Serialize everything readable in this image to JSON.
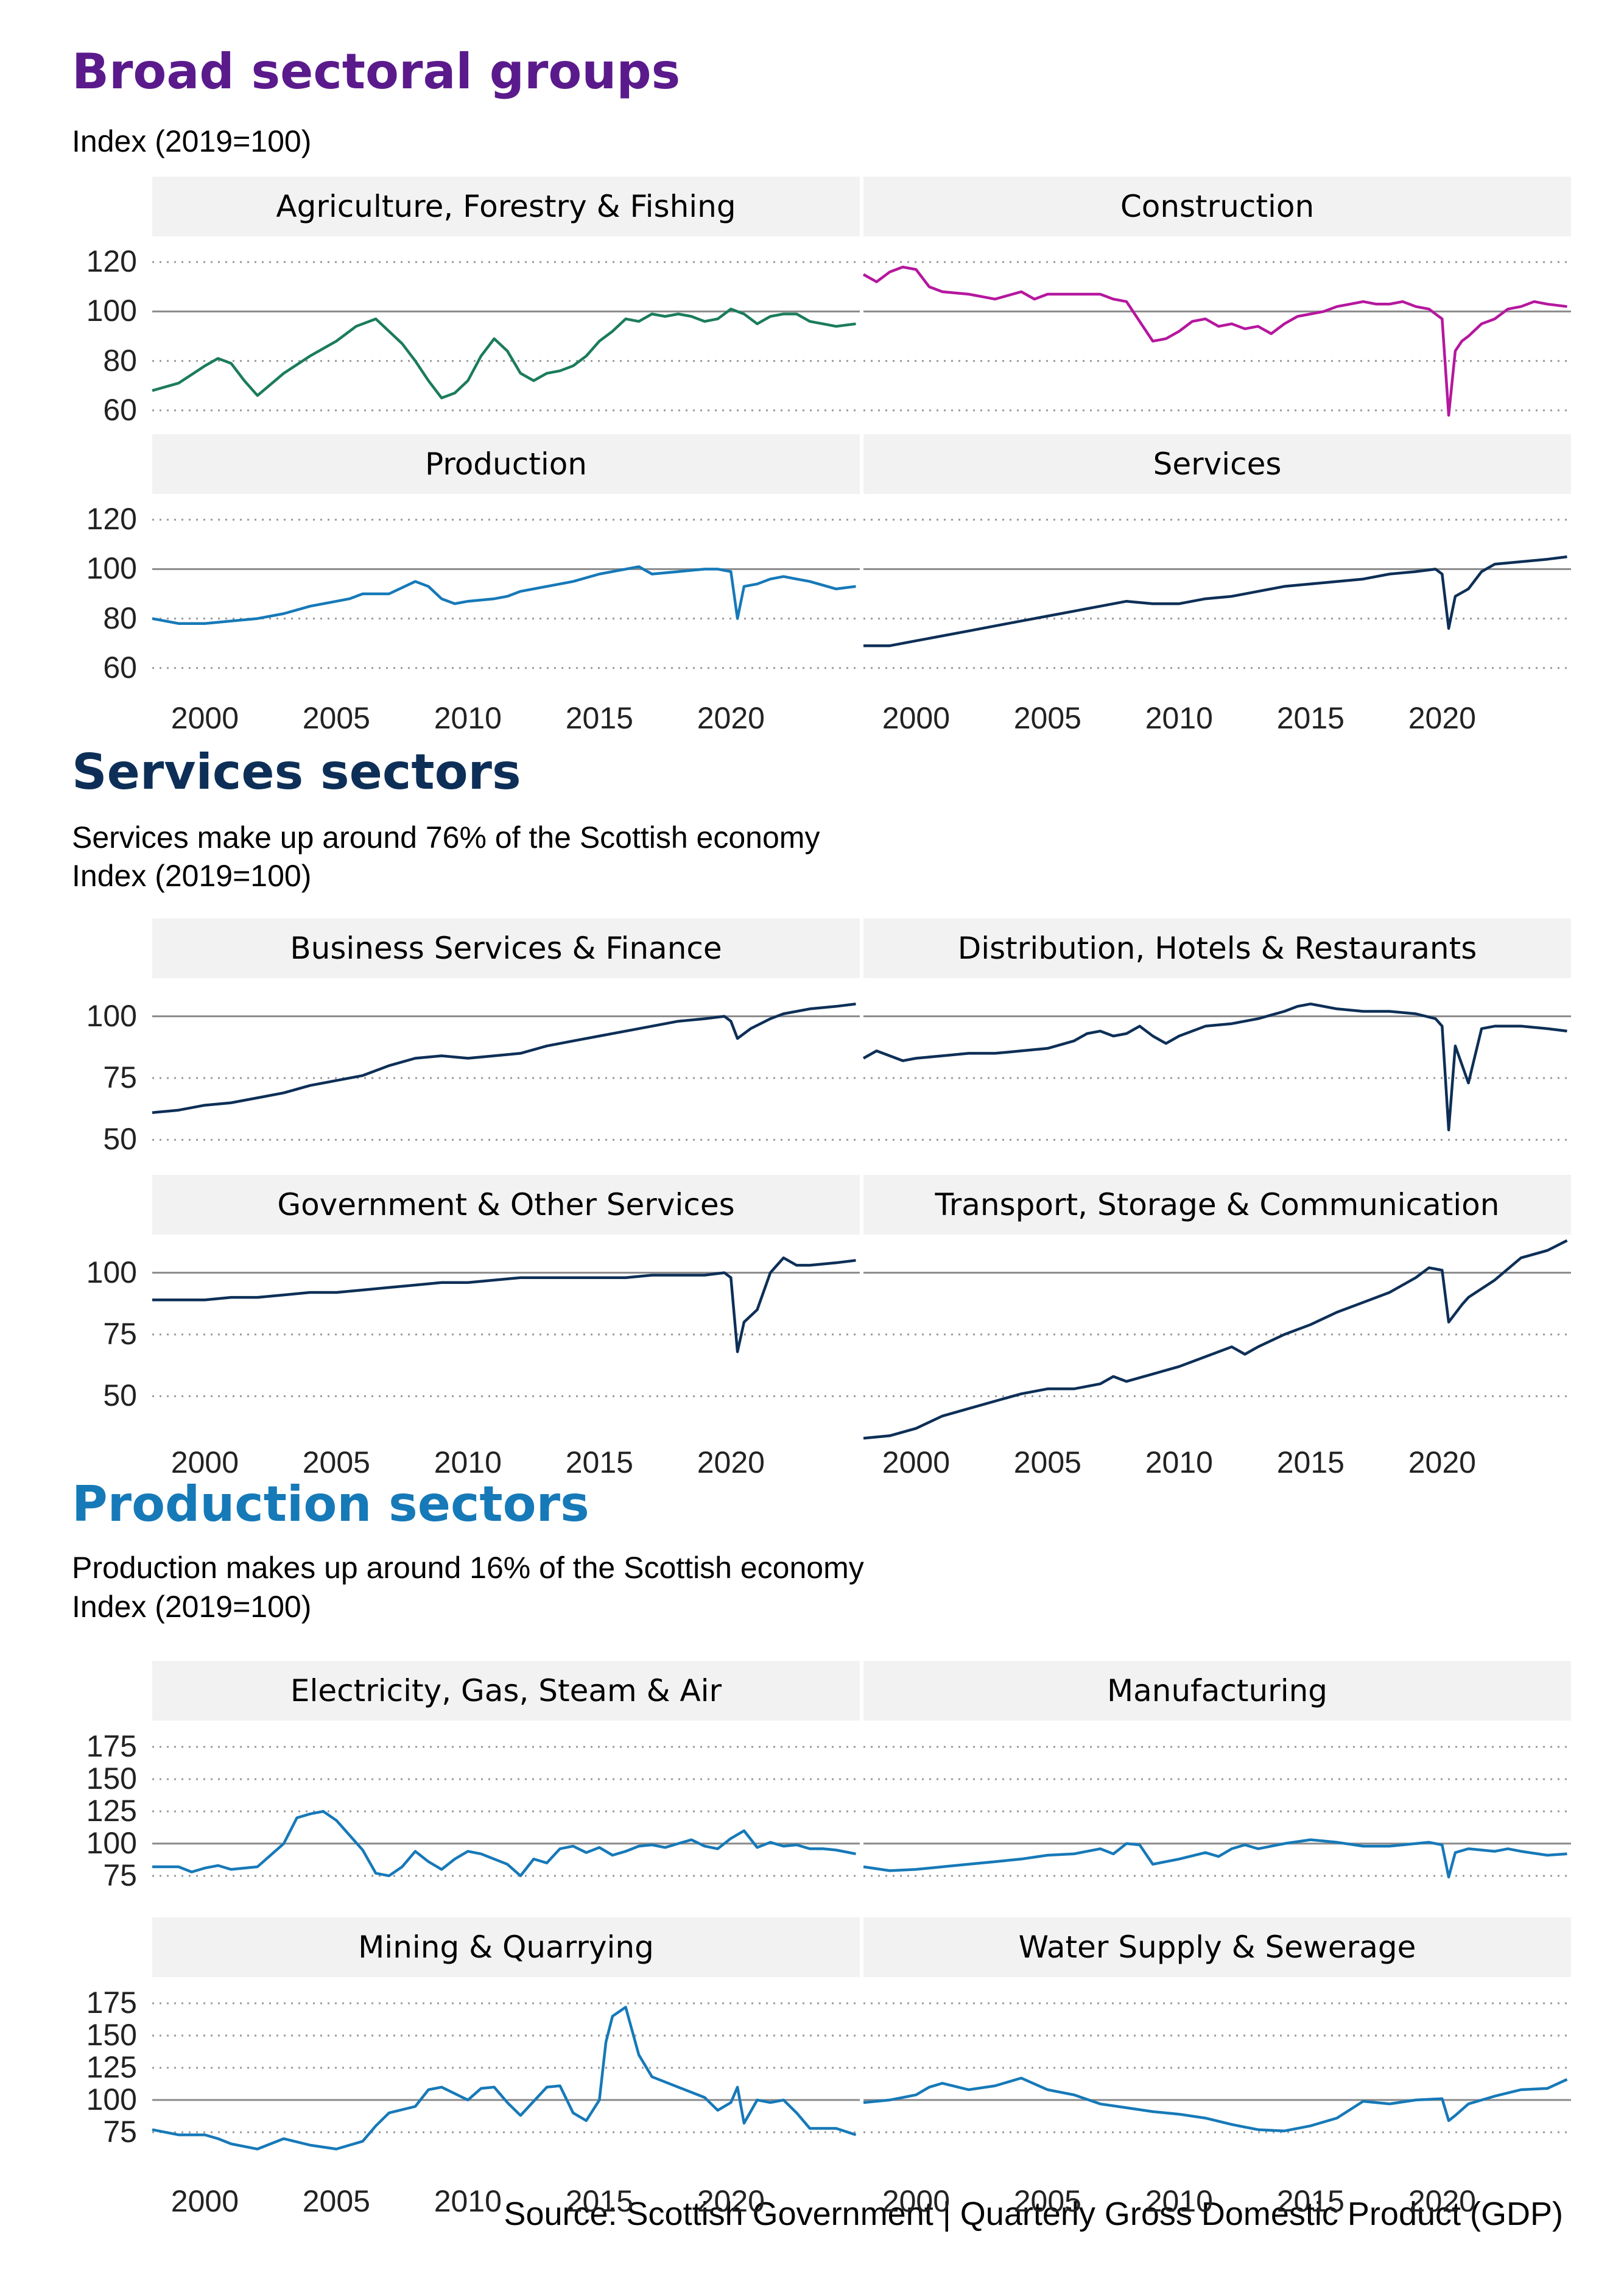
{
  "sections": [
    {
      "title": "Broad sectoral groups",
      "color": "#5a1a8c",
      "subtitle_lines": [
        "Index (2019=100)"
      ],
      "yticks": [
        "60",
        "80",
        "100",
        "120"
      ],
      "xticks": [
        "2000",
        "2005",
        "2010",
        "2015",
        "2020"
      ]
    },
    {
      "title": "Services sectors",
      "color": "#0d2f57",
      "subtitle_lines": [
        "Services make up around 76% of the Scottish economy",
        "Index (2019=100)"
      ],
      "yticks": [
        "50",
        "75",
        "100"
      ],
      "xticks": [
        "2000",
        "2005",
        "2010",
        "2015",
        "2020"
      ]
    },
    {
      "title": "Production sectors",
      "color": "#1679b8",
      "subtitle_lines": [
        "Production makes up around 16% of the Scottish economy",
        "Index (2019=100)"
      ],
      "yticks": [
        "75",
        "100",
        "125",
        "150",
        "175"
      ],
      "xticks": [
        "2000",
        "2005",
        "2010",
        "2015",
        "2020"
      ]
    }
  ],
  "source": "Source: Scottish Government |  Quarterly Gross Domestic Product (GDP)",
  "chart_data": [
    {
      "type": "line",
      "title": "Agriculture, Forestry & Fishing",
      "ylim": [
        55,
        125
      ],
      "yticks": [
        60,
        80,
        100,
        120
      ],
      "color": "#1b7c5c",
      "x": [
        1998.0,
        1999.0,
        2000.0,
        2000.5,
        2001.0,
        2001.5,
        2002.0,
        2003.0,
        2004.0,
        2005.0,
        2005.75,
        2006.5,
        2007.0,
        2007.5,
        2008.0,
        2008.5,
        2009.0,
        2009.5,
        2010.0,
        2010.5,
        2011.0,
        2011.5,
        2012.0,
        2012.5,
        2013.0,
        2013.5,
        2014.0,
        2014.5,
        2015.0,
        2015.5,
        2016.0,
        2016.5,
        2017.0,
        2017.5,
        2018.0,
        2018.5,
        2019.0,
        2019.5,
        2020.0,
        2020.5,
        2021.0,
        2021.5,
        2022.0,
        2022.5,
        2023.0,
        2023.5,
        2024.0,
        2024.75
      ],
      "values": [
        68,
        71,
        78,
        81,
        79,
        72,
        66,
        75,
        82,
        88,
        94,
        97,
        92,
        87,
        80,
        72,
        65,
        67,
        72,
        82,
        89,
        84,
        75,
        72,
        75,
        76,
        78,
        82,
        88,
        92,
        97,
        96,
        99,
        98,
        99,
        98,
        96,
        97,
        101,
        99,
        95,
        98,
        99,
        99,
        96,
        95,
        94,
        95
      ]
    },
    {
      "type": "line",
      "title": "Construction",
      "ylim": [
        55,
        125
      ],
      "yticks": [
        60,
        80,
        100,
        120
      ],
      "color": "#b5179e",
      "x": [
        1998.0,
        1998.5,
        1999.0,
        1999.5,
        2000.0,
        2000.5,
        2001.0,
        2002.0,
        2003.0,
        2004.0,
        2004.5,
        2005.0,
        2006.0,
        2007.0,
        2007.5,
        2008.0,
        2008.5,
        2009.0,
        2009.5,
        2010.0,
        2010.5,
        2011.0,
        2011.5,
        2012.0,
        2012.5,
        2013.0,
        2013.5,
        2014.0,
        2014.5,
        2015.0,
        2015.5,
        2016.0,
        2016.5,
        2017.0,
        2017.5,
        2018.0,
        2018.5,
        2019.0,
        2019.5,
        2019.75,
        2020.0,
        2020.25,
        2020.5,
        2020.75,
        2021.0,
        2021.5,
        2022.0,
        2022.5,
        2023.0,
        2023.5,
        2024.0,
        2024.75
      ],
      "values": [
        115,
        112,
        116,
        118,
        117,
        110,
        108,
        107,
        105,
        108,
        105,
        107,
        107,
        107,
        105,
        104,
        96,
        88,
        89,
        92,
        96,
        97,
        94,
        95,
        93,
        94,
        91,
        95,
        98,
        99,
        100,
        102,
        103,
        104,
        103,
        103,
        104,
        102,
        101,
        99,
        97,
        58,
        84,
        88,
        90,
        95,
        97,
        101,
        102,
        104,
        103,
        102
      ]
    },
    {
      "type": "line",
      "title": "Production",
      "ylim": [
        55,
        125
      ],
      "yticks": [
        60,
        80,
        100,
        120
      ],
      "color": "#1679b8",
      "x": [
        1998.0,
        1999.0,
        2000.0,
        2001.0,
        2002.0,
        2003.0,
        2004.0,
        2005.0,
        2005.5,
        2006.0,
        2007.0,
        2008.0,
        2008.5,
        2009.0,
        2009.5,
        2010.0,
        2011.0,
        2011.5,
        2012.0,
        2013.0,
        2014.0,
        2015.0,
        2016.0,
        2016.5,
        2017.0,
        2018.0,
        2019.0,
        2019.5,
        2020.0,
        2020.25,
        2020.5,
        2021.0,
        2021.5,
        2022.0,
        2022.5,
        2023.0,
        2024.0,
        2024.75
      ],
      "values": [
        80,
        78,
        78,
        79,
        80,
        82,
        85,
        87,
        88,
        90,
        90,
        95,
        93,
        88,
        86,
        87,
        88,
        89,
        91,
        93,
        95,
        98,
        100,
        101,
        98,
        99,
        100,
        100,
        99,
        80,
        93,
        94,
        96,
        97,
        96,
        95,
        92,
        93
      ]
    },
    {
      "type": "line",
      "title": "Services",
      "ylim": [
        55,
        125
      ],
      "yticks": [
        60,
        80,
        100,
        120
      ],
      "color": "#0d2f57",
      "x": [
        1998.0,
        1999.0,
        2000.0,
        2001.0,
        2002.0,
        2003.0,
        2004.0,
        2005.0,
        2006.0,
        2007.0,
        2008.0,
        2009.0,
        2010.0,
        2011.0,
        2012.0,
        2013.0,
        2014.0,
        2015.0,
        2016.0,
        2017.0,
        2018.0,
        2019.0,
        2019.75,
        2020.0,
        2020.25,
        2020.5,
        2021.0,
        2021.5,
        2022.0,
        2023.0,
        2024.0,
        2024.75
      ],
      "values": [
        69,
        69,
        71,
        73,
        75,
        77,
        79,
        81,
        83,
        85,
        87,
        86,
        86,
        88,
        89,
        91,
        93,
        94,
        95,
        96,
        98,
        99,
        100,
        98,
        76,
        89,
        92,
        99,
        102,
        103,
        104,
        105
      ]
    },
    {
      "type": "line",
      "title": "Business Services & Finance",
      "ylim": [
        40,
        110
      ],
      "yticks": [
        50,
        75,
        100
      ],
      "color": "#0d2f57",
      "x": [
        1998.0,
        1999.0,
        2000.0,
        2001.0,
        2002.0,
        2003.0,
        2004.0,
        2005.0,
        2006.0,
        2007.0,
        2008.0,
        2009.0,
        2010.0,
        2011.0,
        2012.0,
        2013.0,
        2014.0,
        2015.0,
        2016.0,
        2017.0,
        2018.0,
        2019.0,
        2019.75,
        2020.0,
        2020.25,
        2020.75,
        2021.5,
        2022.0,
        2023.0,
        2024.0,
        2024.75
      ],
      "values": [
        61,
        62,
        64,
        65,
        67,
        69,
        72,
        74,
        76,
        80,
        83,
        84,
        83,
        84,
        85,
        88,
        90,
        92,
        94,
        96,
        98,
        99,
        100,
        98,
        91,
        95,
        99,
        101,
        103,
        104,
        105
      ]
    },
    {
      "type": "line",
      "title": "Distribution, Hotels & Restaurants",
      "ylim": [
        40,
        110
      ],
      "yticks": [
        50,
        75,
        100
      ],
      "color": "#0d2f57",
      "x": [
        1998.0,
        1998.5,
        1999.5,
        2000.0,
        2001.0,
        2002.0,
        2003.0,
        2004.0,
        2005.0,
        2006.0,
        2006.5,
        2007.0,
        2007.5,
        2008.0,
        2008.5,
        2009.0,
        2009.5,
        2010.0,
        2011.0,
        2012.0,
        2013.0,
        2014.0,
        2014.5,
        2015.0,
        2016.0,
        2017.0,
        2018.0,
        2019.0,
        2019.75,
        2020.0,
        2020.25,
        2020.5,
        2021.0,
        2021.5,
        2022.0,
        2023.0,
        2024.0,
        2024.75
      ],
      "values": [
        83,
        86,
        82,
        83,
        84,
        85,
        85,
        86,
        87,
        90,
        93,
        94,
        92,
        93,
        96,
        92,
        89,
        92,
        96,
        97,
        99,
        102,
        104,
        105,
        103,
        102,
        102,
        101,
        99,
        96,
        54,
        88,
        73,
        95,
        96,
        96,
        95,
        94
      ]
    },
    {
      "type": "line",
      "title": "Government & Other Services",
      "ylim": [
        40,
        110
      ],
      "yticks": [
        50,
        75,
        100
      ],
      "color": "#0d2f57",
      "x": [
        1998.0,
        1999.0,
        2000.0,
        2001.0,
        2002.0,
        2003.0,
        2004.0,
        2005.0,
        2006.0,
        2007.0,
        2008.0,
        2009.0,
        2010.0,
        2011.0,
        2012.0,
        2013.0,
        2014.0,
        2015.0,
        2016.0,
        2017.0,
        2018.0,
        2019.0,
        2019.75,
        2020.0,
        2020.25,
        2020.5,
        2021.0,
        2021.5,
        2022.0,
        2022.5,
        2023.0,
        2024.0,
        2024.75
      ],
      "values": [
        89,
        89,
        89,
        90,
        90,
        91,
        92,
        92,
        93,
        94,
        95,
        96,
        96,
        97,
        98,
        98,
        98,
        98,
        98,
        99,
        99,
        99,
        100,
        98,
        68,
        80,
        85,
        100,
        106,
        103,
        103,
        104,
        105
      ]
    },
    {
      "type": "line",
      "title": "Transport, Storage & Communication",
      "ylim": [
        40,
        110
      ],
      "yticks": [
        50,
        75,
        100
      ],
      "color": "#0d2f57",
      "x": [
        1998.0,
        1999.0,
        2000.0,
        2001.0,
        2002.0,
        2003.0,
        2004.0,
        2005.0,
        2006.0,
        2007.0,
        2007.5,
        2008.0,
        2009.0,
        2010.0,
        2011.0,
        2012.0,
        2012.5,
        2013.0,
        2014.0,
        2015.0,
        2016.0,
        2017.0,
        2018.0,
        2019.0,
        2019.5,
        2020.0,
        2020.25,
        2020.75,
        2021.0,
        2022.0,
        2023.0,
        2024.0,
        2024.75
      ],
      "values": [
        33,
        34,
        37,
        42,
        45,
        48,
        51,
        53,
        53,
        55,
        58,
        56,
        59,
        62,
        66,
        70,
        67,
        70,
        75,
        79,
        84,
        88,
        92,
        98,
        102,
        101,
        80,
        87,
        90,
        97,
        106,
        109,
        113
      ]
    },
    {
      "type": "line",
      "title": "Electricity, Gas, Steam & Air",
      "ylim": [
        65,
        185
      ],
      "yticks": [
        75,
        100,
        125,
        150,
        175
      ],
      "color": "#1679b8",
      "x": [
        1998.0,
        1999.0,
        1999.5,
        2000.0,
        2000.5,
        2001.0,
        2002.0,
        2003.0,
        2003.5,
        2004.0,
        2004.5,
        2005.0,
        2006.0,
        2006.5,
        2007.0,
        2007.5,
        2008.0,
        2008.5,
        2009.0,
        2009.5,
        2010.0,
        2010.5,
        2011.0,
        2011.5,
        2012.0,
        2012.5,
        2013.0,
        2013.5,
        2014.0,
        2014.5,
        2015.0,
        2015.5,
        2016.0,
        2016.5,
        2017.0,
        2017.5,
        2018.0,
        2018.5,
        2019.0,
        2019.5,
        2020.0,
        2020.5,
        2021.0,
        2021.5,
        2022.0,
        2022.5,
        2023.0,
        2023.5,
        2024.0,
        2024.75
      ],
      "values": [
        82,
        82,
        78,
        81,
        83,
        80,
        82,
        100,
        120,
        123,
        125,
        118,
        95,
        77,
        75,
        82,
        94,
        86,
        80,
        88,
        94,
        92,
        88,
        84,
        75,
        88,
        85,
        96,
        98,
        93,
        97,
        91,
        94,
        98,
        99,
        97,
        100,
        103,
        98,
        96,
        104,
        110,
        97,
        101,
        98,
        99,
        96,
        96,
        95,
        92
      ]
    },
    {
      "type": "line",
      "title": "Manufacturing",
      "ylim": [
        65,
        185
      ],
      "yticks": [
        75,
        100,
        125,
        150,
        175
      ],
      "color": "#1679b8",
      "x": [
        1998.0,
        1999.0,
        2000.0,
        2001.0,
        2002.0,
        2003.0,
        2004.0,
        2005.0,
        2006.0,
        2007.0,
        2007.5,
        2008.0,
        2008.5,
        2009.0,
        2010.0,
        2011.0,
        2011.5,
        2012.0,
        2012.5,
        2013.0,
        2014.0,
        2015.0,
        2016.0,
        2017.0,
        2018.0,
        2019.0,
        2019.5,
        2020.0,
        2020.25,
        2020.5,
        2021.0,
        2022.0,
        2022.5,
        2023.0,
        2024.0,
        2024.75
      ],
      "values": [
        82,
        79,
        80,
        82,
        84,
        86,
        88,
        91,
        92,
        96,
        92,
        100,
        99,
        84,
        88,
        93,
        90,
        96,
        99,
        96,
        100,
        103,
        101,
        98,
        98,
        100,
        101,
        99,
        74,
        93,
        96,
        94,
        96,
        94,
        91,
        92
      ]
    },
    {
      "type": "line",
      "title": "Mining & Quarrying",
      "ylim": [
        65,
        185
      ],
      "yticks": [
        75,
        100,
        125,
        150,
        175
      ],
      "color": "#1679b8",
      "x": [
        1998.0,
        1999.0,
        2000.0,
        2000.5,
        2001.0,
        2002.0,
        2003.0,
        2004.0,
        2005.0,
        2006.0,
        2006.5,
        2007.0,
        2008.0,
        2008.5,
        2009.0,
        2010.0,
        2010.5,
        2011.0,
        2011.5,
        2012.0,
        2013.0,
        2013.5,
        2014.0,
        2014.5,
        2015.0,
        2015.25,
        2015.5,
        2016.0,
        2016.5,
        2017.0,
        2018.0,
        2019.0,
        2019.5,
        2020.0,
        2020.25,
        2020.5,
        2021.0,
        2021.5,
        2022.0,
        2022.5,
        2023.0,
        2024.0,
        2024.75
      ],
      "values": [
        77,
        73,
        73,
        70,
        66,
        62,
        70,
        65,
        62,
        68,
        80,
        90,
        95,
        108,
        110,
        100,
        109,
        110,
        98,
        88,
        110,
        111,
        90,
        84,
        100,
        145,
        165,
        172,
        135,
        118,
        110,
        102,
        92,
        98,
        110,
        82,
        100,
        98,
        100,
        90,
        78,
        78,
        73
      ]
    },
    {
      "type": "line",
      "title": "Water Supply & Sewerage",
      "ylim": [
        65,
        185
      ],
      "yticks": [
        75,
        100,
        125,
        150,
        175
      ],
      "color": "#1679b8",
      "x": [
        1998.0,
        1999.0,
        2000.0,
        2000.5,
        2001.0,
        2002.0,
        2003.0,
        2004.0,
        2005.0,
        2006.0,
        2007.0,
        2008.0,
        2009.0,
        2010.0,
        2011.0,
        2012.0,
        2013.0,
        2014.0,
        2015.0,
        2016.0,
        2017.0,
        2018.0,
        2019.0,
        2020.0,
        2020.25,
        2020.5,
        2021.0,
        2022.0,
        2023.0,
        2024.0,
        2024.75
      ],
      "values": [
        98,
        100,
        104,
        110,
        113,
        108,
        111,
        117,
        108,
        104,
        97,
        94,
        91,
        89,
        86,
        81,
        77,
        76,
        80,
        86,
        99,
        97,
        100,
        101,
        84,
        88,
        97,
        103,
        108,
        109,
        116
      ]
    }
  ]
}
